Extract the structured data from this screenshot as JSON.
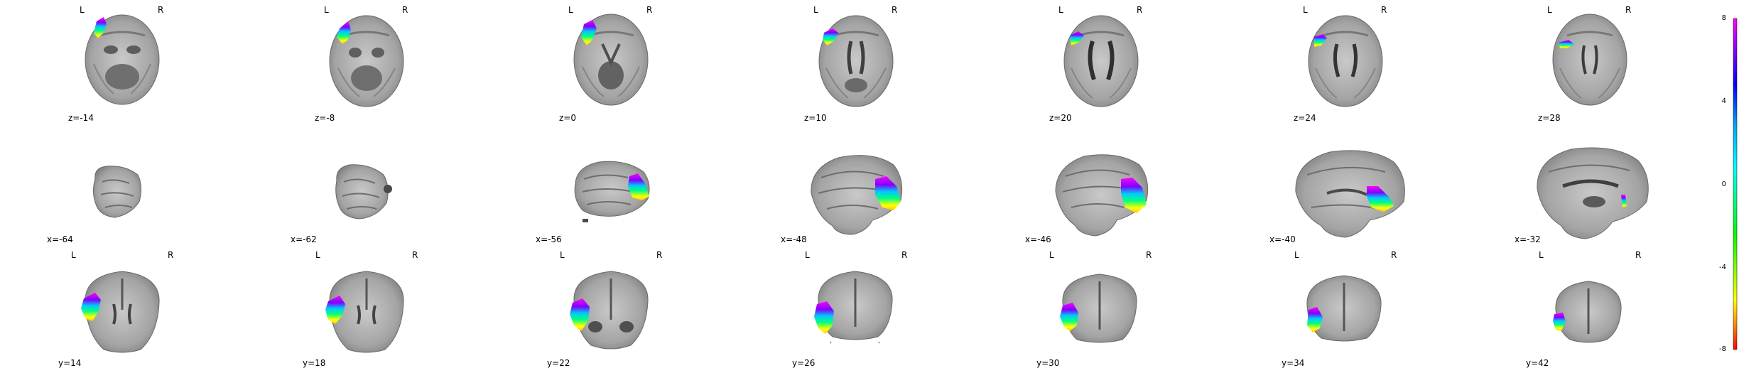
{
  "figure": {
    "orientation_left": "L",
    "orientation_right": "R"
  },
  "rows": [
    {
      "view": "axial",
      "panels": [
        {
          "label": "z=-14"
        },
        {
          "label": "z=-8"
        },
        {
          "label": "z=0"
        },
        {
          "label": "z=10"
        },
        {
          "label": "z=20"
        },
        {
          "label": "z=24"
        },
        {
          "label": "z=28"
        }
      ]
    },
    {
      "view": "sagittal",
      "panels": [
        {
          "label": "x=-64"
        },
        {
          "label": "x=-62"
        },
        {
          "label": "x=-56"
        },
        {
          "label": "x=-48"
        },
        {
          "label": "x=-46"
        },
        {
          "label": "x=-40"
        },
        {
          "label": "x=-32"
        }
      ]
    },
    {
      "view": "coronal",
      "panels": [
        {
          "label": "y=14"
        },
        {
          "label": "y=18"
        },
        {
          "label": "y=22"
        },
        {
          "label": "y=26"
        },
        {
          "label": "y=30"
        },
        {
          "label": "y=34"
        },
        {
          "label": "y=42"
        }
      ]
    }
  ],
  "colorbar": {
    "ticks": [
      "8",
      "4",
      "0",
      "-4",
      "-8"
    ],
    "colors_top_to_bottom": [
      "#ff00ff",
      "#8000ff",
      "#0000ff",
      "#00a0ff",
      "#00ffff",
      "#00ff80",
      "#00ff00",
      "#80ff00",
      "#ffff00",
      "#ff8000",
      "#ff0000"
    ]
  },
  "colors": {
    "background": "#ffffff",
    "brain_light": "#d7d7d7",
    "brain_mid": "#a8a8a8",
    "brain_dark": "#575757"
  }
}
